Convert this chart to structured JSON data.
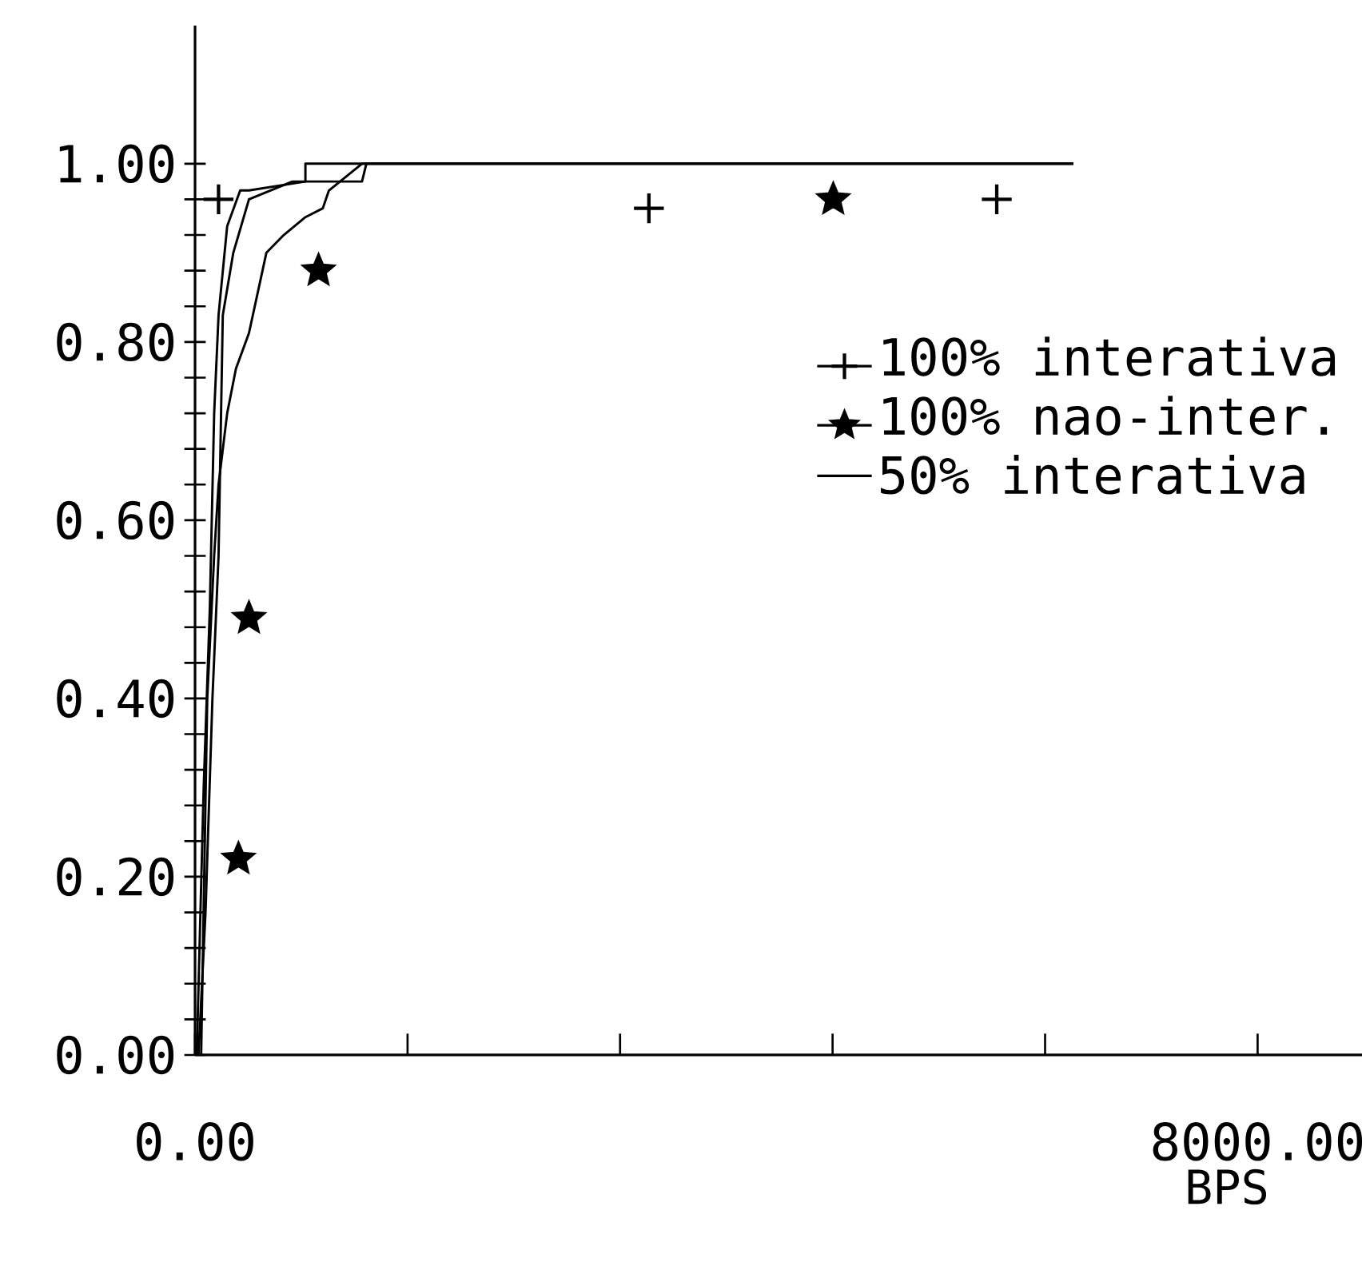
{
  "chart_data": {
    "type": "line",
    "xlabel": "BPS",
    "xlim": [
      0,
      8786
    ],
    "ylim": [
      0,
      1.155
    ],
    "xticks": [
      {
        "value": 0,
        "label": "0.00"
      },
      {
        "value": 1600,
        "label": null
      },
      {
        "value": 3200,
        "label": null
      },
      {
        "value": 4800,
        "label": null
      },
      {
        "value": 6400,
        "label": null
      },
      {
        "value": 8000,
        "label": "8000.00"
      }
    ],
    "yticks": [
      {
        "value": 0,
        "label": "0.00"
      },
      {
        "value": 0.04,
        "label": null
      },
      {
        "value": 0.08,
        "label": null
      },
      {
        "value": 0.12,
        "label": null
      },
      {
        "value": 0.16,
        "label": null
      },
      {
        "value": 0.2,
        "label": "0.20"
      },
      {
        "value": 0.24,
        "label": null
      },
      {
        "value": 0.28,
        "label": null
      },
      {
        "value": 0.32,
        "label": null
      },
      {
        "value": 0.36,
        "label": null
      },
      {
        "value": 0.4,
        "label": "0.40"
      },
      {
        "value": 0.44,
        "label": null
      },
      {
        "value": 0.48,
        "label": null
      },
      {
        "value": 0.52,
        "label": null
      },
      {
        "value": 0.56,
        "label": null
      },
      {
        "value": 0.6,
        "label": "0.60"
      },
      {
        "value": 0.64,
        "label": null
      },
      {
        "value": 0.68,
        "label": null
      },
      {
        "value": 0.72,
        "label": null
      },
      {
        "value": 0.76,
        "label": null
      },
      {
        "value": 0.8,
        "label": "0.80"
      },
      {
        "value": 0.84,
        "label": null
      },
      {
        "value": 0.88,
        "label": null
      },
      {
        "value": 0.92,
        "label": null
      },
      {
        "value": 0.96,
        "label": null
      },
      {
        "value": 1.0,
        "label": "1.00"
      }
    ],
    "legend": "right",
    "grid": false,
    "series": [
      {
        "name": "100% interativa",
        "type": "scatter",
        "marker": "cross",
        "color": "#000000",
        "x": [
          177,
          3417,
          6036
        ],
        "values": [
          0.96,
          0.95,
          0.96
        ]
      },
      {
        "name": "100% nao-inter.",
        "type": "scatter",
        "marker": "star",
        "color": "#000000",
        "x": [
          327,
          406,
          930,
          4805
        ],
        "values": [
          0.22,
          0.49,
          0.88,
          0.96
        ]
      },
      {
        "color": "#000000",
        "line_style": "solid",
        "x": [
          13,
          65,
          111,
          144,
          177,
          242,
          340,
          406,
          831,
          831,
          1061,
          1257,
          6612
        ],
        "values": [
          0,
          0.3,
          0.5,
          0.72,
          0.83,
          0.93,
          0.97,
          0.97,
          0.98,
          1.0,
          1.0,
          1.0,
          1.0
        ]
      },
      {
        "color": "#000000",
        "line_style": "solid",
        "x": [
          46,
          92,
          144,
          177,
          242,
          308,
          406,
          537,
          668,
          831,
          962,
          1008,
          1257,
          6612
        ],
        "values": [
          0,
          0.4,
          0.56,
          0.64,
          0.72,
          0.77,
          0.81,
          0.9,
          0.92,
          0.94,
          0.95,
          0.97,
          1.0,
          1.0
        ]
      },
      {
        "name": "50% interativa",
        "color": "#000000",
        "line_style": "solid",
        "x": [
          26,
          79,
          131,
          177,
          209,
          288,
          406,
          733,
          1257,
          1290,
          6612
        ],
        "values": [
          0,
          0.16,
          0.4,
          0.56,
          0.83,
          0.9,
          0.96,
          0.98,
          0.98,
          1.0,
          1.0
        ]
      }
    ]
  }
}
